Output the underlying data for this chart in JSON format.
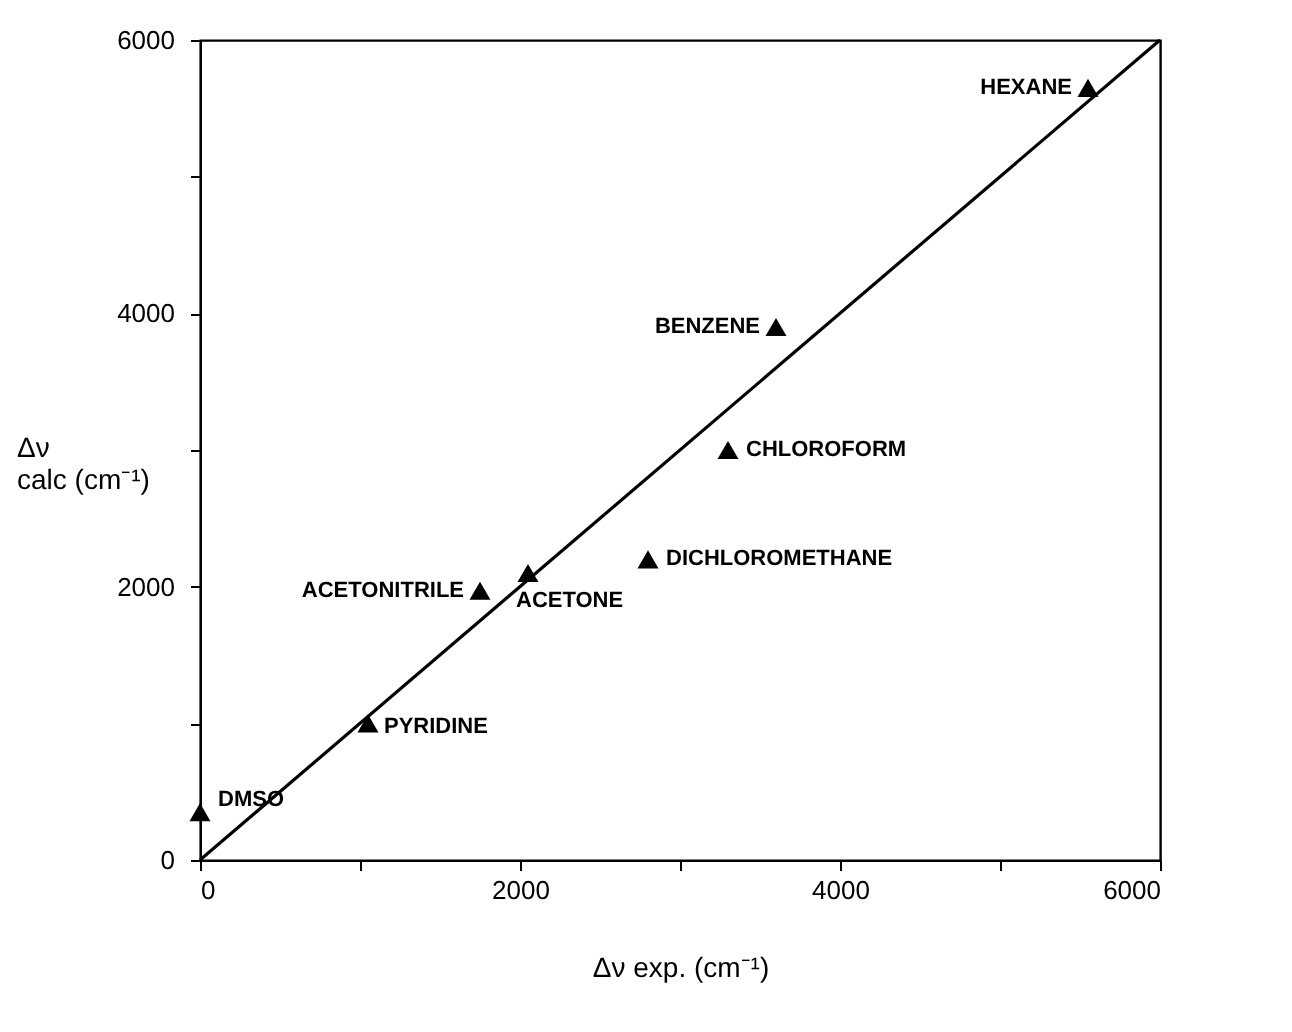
{
  "chart_data": {
    "type": "scatter",
    "xlabel": "Δν exp. (cm⁻¹)",
    "ylabel": "Δν\ncalc (cm⁻¹)",
    "xlim": [
      0,
      6000
    ],
    "ylim": [
      0,
      6000
    ],
    "xticks": [
      0,
      {
        "value": 1000,
        "label": null
      },
      2000,
      {
        "value": 3000,
        "label": null
      },
      4000,
      {
        "value": 5000,
        "label": null
      },
      6000
    ],
    "yticks": [
      0,
      {
        "value": 1000,
        "label": null
      },
      2000,
      {
        "value": 3000,
        "label": null
      },
      4000,
      {
        "value": 5000,
        "label": null
      },
      6000
    ],
    "grid": false,
    "series": [
      {
        "marker": "triangle",
        "color": "#000000",
        "x": [
          0,
          1050,
          1750,
          2050,
          2800,
          3300,
          3600,
          5550
        ],
        "values": [
          350,
          1000,
          1970,
          2100,
          2200,
          3000,
          3900,
          5650
        ]
      },
      {
        "type": "line",
        "marker": "none",
        "line_style": "solid",
        "color": "#000000",
        "x": [
          0,
          6000
        ],
        "values": [
          0,
          6000
        ]
      }
    ],
    "annotations": [
      {
        "text": "DMSO",
        "x": 0,
        "y": 350
      },
      {
        "text": "PYRIDINE",
        "x": 1050,
        "y": 1000
      },
      {
        "text": "ACETONITRILE",
        "x": 1750,
        "y": 1970
      },
      {
        "text": "ACETONE",
        "x": 2050,
        "y": 2100
      },
      {
        "text": "DICHLOROMETHANE",
        "x": 2800,
        "y": 2200
      },
      {
        "text": "CHLOROFORM",
        "x": 3300,
        "y": 3000
      },
      {
        "text": "BENZENE",
        "x": 3600,
        "y": 3900
      },
      {
        "text": "HEXANE",
        "x": 5550,
        "y": 5650
      }
    ]
  }
}
